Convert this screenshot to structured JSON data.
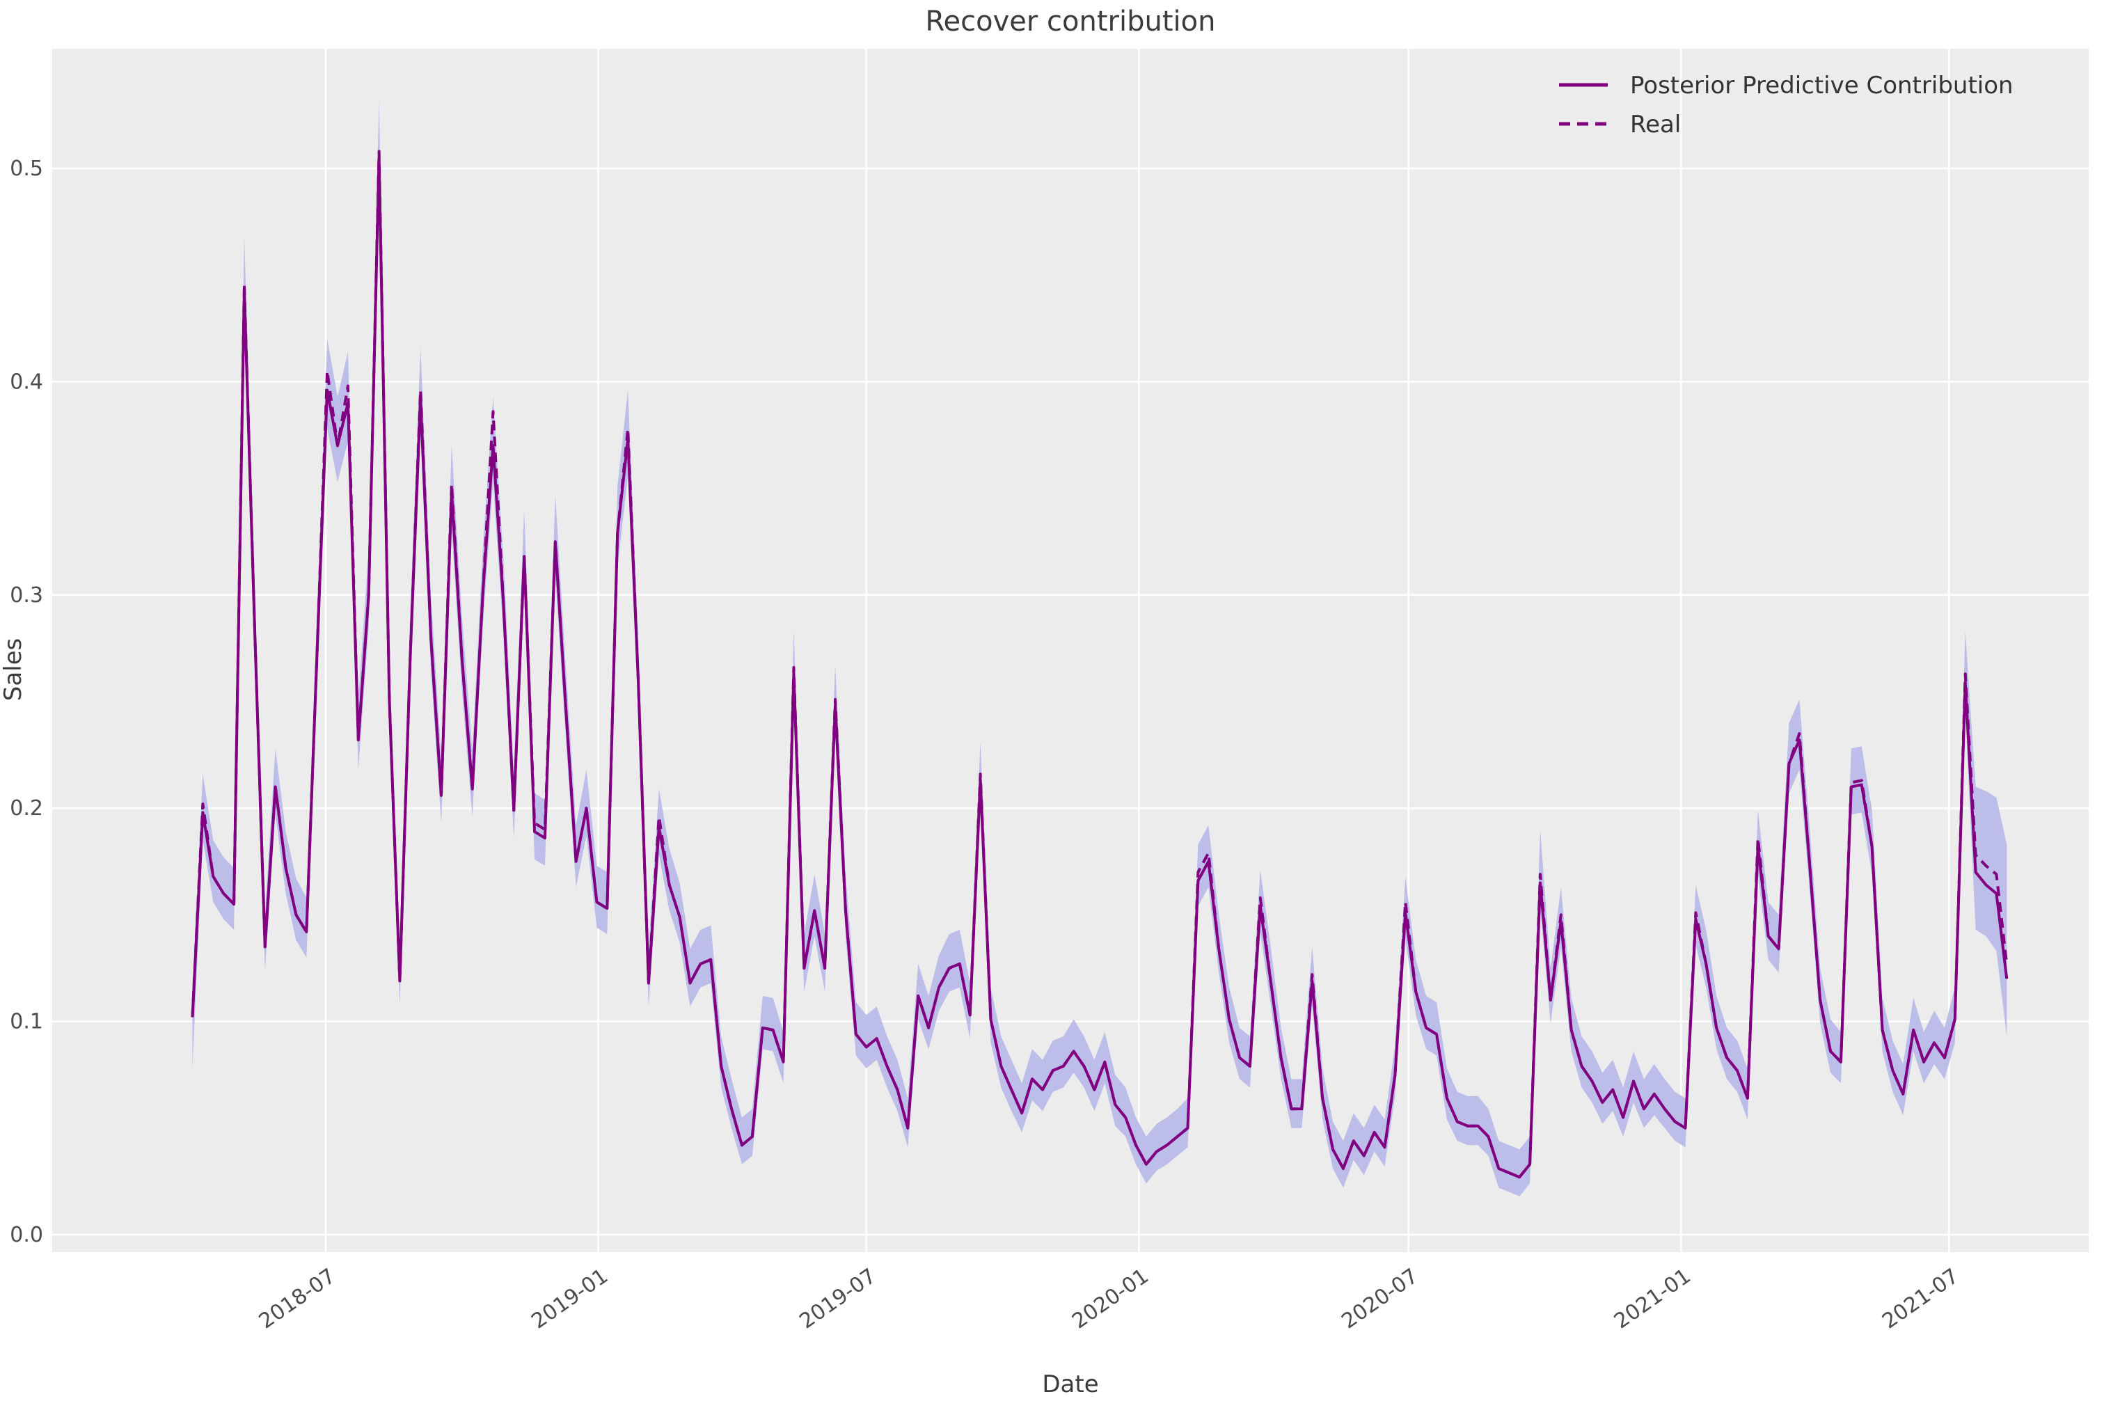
{
  "title": "Recover contribution",
  "colors": {
    "line": "#800080",
    "band": "#bcbde9",
    "plot_background": "#ececec",
    "grid": "#ffffff",
    "figure_background": "#ffffff",
    "text": "#3b3b3b",
    "tick_text": "#4c4c4c"
  },
  "chart_data": {
    "type": "line",
    "title": "Recover contribution",
    "xlabel": "Date",
    "ylabel": "Sales",
    "grid": true,
    "legend_position": "upper right",
    "ylim": [
      -0.027,
      0.556
    ],
    "y_ticks": {
      "values": [
        0.0,
        0.1,
        0.2,
        0.3,
        0.4,
        0.5
      ],
      "labels": [
        "0.0",
        "0.1",
        "0.2",
        "0.3",
        "0.4",
        "0.5"
      ]
    },
    "x_ticks": {
      "dates": [
        "2018-07-01",
        "2019-01-01",
        "2019-07-01",
        "2020-01-01",
        "2020-07-01",
        "2021-01-01",
        "2021-07-01"
      ],
      "labels": [
        "2018-07",
        "2019-01",
        "2019-07",
        "2020-01",
        "2020-07",
        "2021-01",
        "2021-07"
      ]
    },
    "x": [
      "2018-04-02",
      "2018-04-09",
      "2018-04-16",
      "2018-04-23",
      "2018-04-30",
      "2018-05-07",
      "2018-05-14",
      "2018-05-21",
      "2018-05-28",
      "2018-06-04",
      "2018-06-11",
      "2018-06-18",
      "2018-06-25",
      "2018-07-02",
      "2018-07-09",
      "2018-07-16",
      "2018-07-23",
      "2018-07-30",
      "2018-08-06",
      "2018-08-13",
      "2018-08-20",
      "2018-08-27",
      "2018-09-03",
      "2018-09-10",
      "2018-09-17",
      "2018-09-24",
      "2018-10-01",
      "2018-10-08",
      "2018-10-15",
      "2018-10-22",
      "2018-10-29",
      "2018-11-05",
      "2018-11-12",
      "2018-11-19",
      "2018-11-26",
      "2018-12-03",
      "2018-12-10",
      "2018-12-17",
      "2018-12-24",
      "2018-12-31",
      "2019-01-07",
      "2019-01-14",
      "2019-01-21",
      "2019-01-28",
      "2019-02-04",
      "2019-02-11",
      "2019-02-18",
      "2019-02-25",
      "2019-03-04",
      "2019-03-11",
      "2019-03-18",
      "2019-03-25",
      "2019-04-01",
      "2019-04-08",
      "2019-04-15",
      "2019-04-22",
      "2019-04-29",
      "2019-05-06",
      "2019-05-13",
      "2019-05-20",
      "2019-05-27",
      "2019-06-03",
      "2019-06-10",
      "2019-06-17",
      "2019-06-24",
      "2019-07-01",
      "2019-07-08",
      "2019-07-15",
      "2019-07-22",
      "2019-07-29",
      "2019-08-05",
      "2019-08-12",
      "2019-08-19",
      "2019-08-26",
      "2019-09-02",
      "2019-09-09",
      "2019-09-16",
      "2019-09-23",
      "2019-09-30",
      "2019-10-07",
      "2019-10-14",
      "2019-10-21",
      "2019-10-28",
      "2019-11-04",
      "2019-11-11",
      "2019-11-18",
      "2019-11-25",
      "2019-12-02",
      "2019-12-09",
      "2019-12-16",
      "2019-12-23",
      "2019-12-30",
      "2020-01-06",
      "2020-01-13",
      "2020-01-20",
      "2020-01-27",
      "2020-02-03",
      "2020-02-10",
      "2020-02-17",
      "2020-02-24",
      "2020-03-02",
      "2020-03-09",
      "2020-03-16",
      "2020-03-23",
      "2020-03-30",
      "2020-04-06",
      "2020-04-13",
      "2020-04-20",
      "2020-04-27",
      "2020-05-04",
      "2020-05-11",
      "2020-05-18",
      "2020-05-25",
      "2020-06-01",
      "2020-06-08",
      "2020-06-15",
      "2020-06-22",
      "2020-06-29",
      "2020-07-06",
      "2020-07-13",
      "2020-07-20",
      "2020-07-27",
      "2020-08-03",
      "2020-08-10",
      "2020-08-17",
      "2020-08-24",
      "2020-08-31",
      "2020-09-07",
      "2020-09-14",
      "2020-09-21",
      "2020-09-28",
      "2020-10-05",
      "2020-10-12",
      "2020-10-19",
      "2020-10-26",
      "2020-11-02",
      "2020-11-09",
      "2020-11-16",
      "2020-11-23",
      "2020-11-30",
      "2020-12-07",
      "2020-12-14",
      "2020-12-21",
      "2020-12-28",
      "2021-01-04",
      "2021-01-11",
      "2021-01-18",
      "2021-01-25",
      "2021-02-01",
      "2021-02-08",
      "2021-02-15",
      "2021-02-22",
      "2021-03-01",
      "2021-03-08",
      "2021-03-15",
      "2021-03-22",
      "2021-03-29",
      "2021-04-05",
      "2021-04-12",
      "2021-04-19",
      "2021-04-26",
      "2021-05-03",
      "2021-05-10",
      "2021-05-17",
      "2021-05-24",
      "2021-05-31",
      "2021-06-07",
      "2021-06-14",
      "2021-06-21",
      "2021-06-28",
      "2021-07-05",
      "2021-07-12",
      "2021-07-19",
      "2021-07-26",
      "2021-08-02",
      "2021-08-09"
    ],
    "series": [
      {
        "name": "Posterior Predictive Contribution",
        "style": "solid",
        "values": [
          0.102,
          0.198,
          0.168,
          0.16,
          0.155,
          0.443,
          0.285,
          0.135,
          0.21,
          0.172,
          0.15,
          0.142,
          0.27,
          0.396,
          0.37,
          0.39,
          0.232,
          0.3,
          0.505,
          0.25,
          0.119,
          0.27,
          0.392,
          0.28,
          0.206,
          0.348,
          0.27,
          0.209,
          0.3,
          0.37,
          0.296,
          0.199,
          0.318,
          0.189,
          0.186,
          0.325,
          0.248,
          0.175,
          0.2,
          0.156,
          0.153,
          0.329,
          0.373,
          0.26,
          0.118,
          0.191,
          0.164,
          0.149,
          0.118,
          0.127,
          0.129,
          0.079,
          0.059,
          0.042,
          0.046,
          0.097,
          0.096,
          0.081,
          0.263,
          0.125,
          0.152,
          0.125,
          0.248,
          0.152,
          0.094,
          0.088,
          0.092,
          0.079,
          0.068,
          0.05,
          0.112,
          0.097,
          0.116,
          0.125,
          0.127,
          0.103,
          0.213,
          0.101,
          0.079,
          0.068,
          0.057,
          0.073,
          0.068,
          0.077,
          0.079,
          0.086,
          0.079,
          0.068,
          0.081,
          0.061,
          0.055,
          0.042,
          0.033,
          0.039,
          0.042,
          0.046,
          0.05,
          0.166,
          0.175,
          0.134,
          0.101,
          0.083,
          0.079,
          0.154,
          0.119,
          0.083,
          0.059,
          0.059,
          0.119,
          0.064,
          0.04,
          0.031,
          0.044,
          0.037,
          0.048,
          0.041,
          0.075,
          0.151,
          0.114,
          0.097,
          0.094,
          0.064,
          0.053,
          0.051,
          0.051,
          0.046,
          0.031,
          0.029,
          0.027,
          0.033,
          0.165,
          0.11,
          0.147,
          0.096,
          0.079,
          0.072,
          0.062,
          0.068,
          0.055,
          0.072,
          0.059,
          0.066,
          0.059,
          0.053,
          0.05,
          0.148,
          0.127,
          0.097,
          0.083,
          0.077,
          0.064,
          0.182,
          0.14,
          0.134,
          0.221,
          0.232,
          0.173,
          0.11,
          0.086,
          0.081,
          0.21,
          0.211,
          0.182,
          0.096,
          0.077,
          0.066,
          0.096,
          0.081,
          0.09,
          0.083,
          0.101,
          0.259,
          0.17,
          0.164,
          0.16,
          0.12
        ]
      },
      {
        "name": "Real",
        "style": "dashed",
        "values": [
          0.102,
          0.202,
          0.168,
          0.16,
          0.155,
          0.446,
          0.285,
          0.135,
          0.21,
          0.172,
          0.15,
          0.142,
          0.27,
          0.405,
          0.37,
          0.398,
          0.232,
          0.3,
          0.508,
          0.25,
          0.119,
          0.27,
          0.396,
          0.28,
          0.206,
          0.352,
          0.27,
          0.209,
          0.3,
          0.386,
          0.296,
          0.199,
          0.318,
          0.193,
          0.19,
          0.325,
          0.248,
          0.175,
          0.2,
          0.156,
          0.153,
          0.329,
          0.378,
          0.26,
          0.118,
          0.196,
          0.164,
          0.149,
          0.118,
          0.127,
          0.129,
          0.079,
          0.059,
          0.042,
          0.046,
          0.097,
          0.096,
          0.081,
          0.266,
          0.125,
          0.152,
          0.125,
          0.251,
          0.152,
          0.094,
          0.088,
          0.092,
          0.079,
          0.068,
          0.05,
          0.112,
          0.097,
          0.116,
          0.125,
          0.127,
          0.103,
          0.216,
          0.101,
          0.079,
          0.068,
          0.057,
          0.073,
          0.068,
          0.077,
          0.079,
          0.086,
          0.079,
          0.068,
          0.081,
          0.061,
          0.055,
          0.042,
          0.033,
          0.039,
          0.042,
          0.046,
          0.05,
          0.17,
          0.179,
          0.134,
          0.101,
          0.083,
          0.079,
          0.158,
          0.119,
          0.083,
          0.059,
          0.059,
          0.122,
          0.064,
          0.04,
          0.031,
          0.044,
          0.037,
          0.048,
          0.041,
          0.075,
          0.156,
          0.114,
          0.097,
          0.094,
          0.064,
          0.053,
          0.051,
          0.051,
          0.046,
          0.031,
          0.029,
          0.027,
          0.033,
          0.169,
          0.11,
          0.15,
          0.096,
          0.079,
          0.072,
          0.062,
          0.068,
          0.055,
          0.072,
          0.059,
          0.066,
          0.059,
          0.053,
          0.05,
          0.151,
          0.127,
          0.097,
          0.083,
          0.077,
          0.064,
          0.186,
          0.14,
          0.134,
          0.221,
          0.235,
          0.173,
          0.11,
          0.086,
          0.081,
          0.212,
          0.213,
          0.182,
          0.096,
          0.077,
          0.066,
          0.096,
          0.081,
          0.09,
          0.083,
          0.101,
          0.263,
          0.178,
          0.173,
          0.169,
          0.127
        ]
      }
    ],
    "band": {
      "name": "posterior credible interval",
      "lower": [
        0.078,
        0.185,
        0.156,
        0.148,
        0.143,
        0.424,
        0.27,
        0.124,
        0.197,
        0.16,
        0.138,
        0.13,
        0.255,
        0.378,
        0.353,
        0.372,
        0.218,
        0.285,
        0.484,
        0.236,
        0.108,
        0.255,
        0.374,
        0.265,
        0.193,
        0.331,
        0.255,
        0.196,
        0.285,
        0.353,
        0.281,
        0.186,
        0.302,
        0.176,
        0.173,
        0.309,
        0.234,
        0.163,
        0.187,
        0.144,
        0.141,
        0.313,
        0.356,
        0.246,
        0.107,
        0.178,
        0.152,
        0.137,
        0.107,
        0.116,
        0.118,
        0.069,
        0.05,
        0.033,
        0.037,
        0.087,
        0.086,
        0.071,
        0.248,
        0.114,
        0.14,
        0.114,
        0.234,
        0.14,
        0.084,
        0.078,
        0.082,
        0.069,
        0.058,
        0.041,
        0.101,
        0.087,
        0.105,
        0.114,
        0.116,
        0.092,
        0.2,
        0.09,
        0.069,
        0.058,
        0.048,
        0.063,
        0.058,
        0.067,
        0.069,
        0.076,
        0.069,
        0.058,
        0.071,
        0.051,
        0.046,
        0.033,
        0.024,
        0.03,
        0.033,
        0.037,
        0.041,
        0.154,
        0.163,
        0.123,
        0.09,
        0.073,
        0.069,
        0.142,
        0.108,
        0.073,
        0.05,
        0.05,
        0.108,
        0.054,
        0.031,
        0.022,
        0.035,
        0.028,
        0.039,
        0.032,
        0.065,
        0.139,
        0.103,
        0.087,
        0.084,
        0.054,
        0.044,
        0.042,
        0.042,
        0.037,
        0.022,
        0.02,
        0.018,
        0.024,
        0.153,
        0.099,
        0.135,
        0.086,
        0.069,
        0.062,
        0.052,
        0.058,
        0.046,
        0.062,
        0.05,
        0.056,
        0.05,
        0.044,
        0.041,
        0.136,
        0.116,
        0.087,
        0.073,
        0.067,
        0.054,
        0.169,
        0.129,
        0.123,
        0.207,
        0.218,
        0.161,
        0.099,
        0.076,
        0.071,
        0.197,
        0.198,
        0.169,
        0.086,
        0.067,
        0.056,
        0.086,
        0.071,
        0.08,
        0.073,
        0.09,
        0.245,
        0.143,
        0.14,
        0.133,
        0.093
      ],
      "upper": [
        0.117,
        0.216,
        0.185,
        0.177,
        0.172,
        0.468,
        0.306,
        0.151,
        0.228,
        0.189,
        0.167,
        0.158,
        0.29,
        0.42,
        0.393,
        0.414,
        0.251,
        0.321,
        0.532,
        0.27,
        0.135,
        0.29,
        0.416,
        0.3,
        0.224,
        0.37,
        0.29,
        0.227,
        0.321,
        0.393,
        0.317,
        0.217,
        0.34,
        0.207,
        0.204,
        0.347,
        0.267,
        0.192,
        0.218,
        0.173,
        0.17,
        0.351,
        0.396,
        0.28,
        0.134,
        0.209,
        0.181,
        0.165,
        0.134,
        0.143,
        0.145,
        0.093,
        0.073,
        0.055,
        0.059,
        0.112,
        0.111,
        0.095,
        0.283,
        0.141,
        0.169,
        0.141,
        0.267,
        0.169,
        0.109,
        0.103,
        0.107,
        0.093,
        0.082,
        0.064,
        0.127,
        0.112,
        0.131,
        0.141,
        0.143,
        0.118,
        0.231,
        0.116,
        0.093,
        0.082,
        0.071,
        0.087,
        0.082,
        0.091,
        0.093,
        0.101,
        0.093,
        0.082,
        0.095,
        0.075,
        0.069,
        0.055,
        0.046,
        0.052,
        0.055,
        0.059,
        0.064,
        0.183,
        0.192,
        0.15,
        0.116,
        0.097,
        0.093,
        0.171,
        0.135,
        0.097,
        0.073,
        0.073,
        0.135,
        0.078,
        0.053,
        0.044,
        0.057,
        0.05,
        0.061,
        0.054,
        0.089,
        0.168,
        0.129,
        0.112,
        0.109,
        0.078,
        0.067,
        0.065,
        0.065,
        0.059,
        0.044,
        0.042,
        0.04,
        0.046,
        0.19,
        0.125,
        0.163,
        0.111,
        0.093,
        0.086,
        0.076,
        0.082,
        0.069,
        0.086,
        0.073,
        0.08,
        0.073,
        0.067,
        0.064,
        0.164,
        0.143,
        0.112,
        0.097,
        0.091,
        0.078,
        0.199,
        0.156,
        0.15,
        0.24,
        0.251,
        0.19,
        0.125,
        0.101,
        0.095,
        0.228,
        0.229,
        0.199,
        0.111,
        0.091,
        0.08,
        0.111,
        0.095,
        0.105,
        0.097,
        0.116,
        0.283,
        0.21,
        0.208,
        0.205,
        0.183
      ]
    }
  }
}
